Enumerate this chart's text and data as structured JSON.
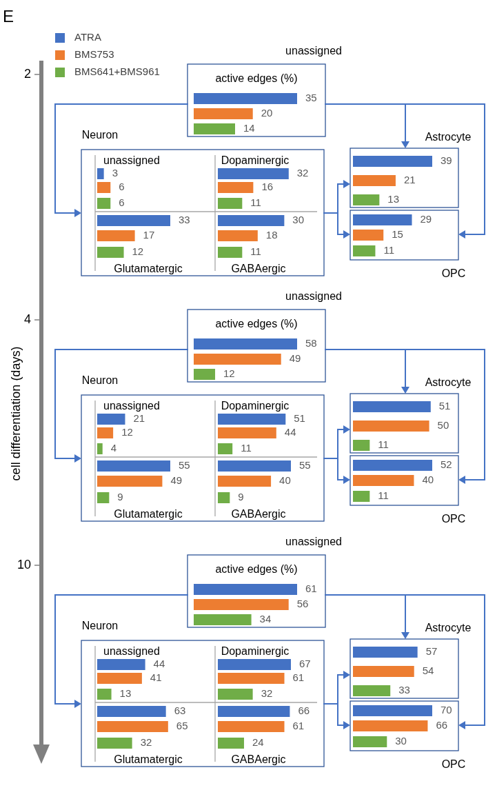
{
  "chart_data": [
    {
      "type": "other",
      "categories": [
        "ATRA",
        "BMS753",
        "BMS641+BMS961"
      ],
      "colors": [
        "#4472c4",
        "#ed7d31",
        "#70ad47"
      ],
      "annotations": [
        "E"
      ]
    },
    {
      "type": "other",
      "ylabel": "cell differentiation (days)",
      "categories": [
        "2",
        "4",
        "10"
      ]
    },
    {
      "type": "bar",
      "orientation": "horizontal",
      "title": "active edges (%)",
      "annotations": [
        "unassigned"
      ],
      "categories": [
        null,
        null,
        null
      ],
      "values": [
        35,
        20,
        14
      ],
      "colors": [
        "#4472c4",
        "#ed7d31",
        "#70ad47"
      ],
      "data_labels": true
    },
    {
      "type": "bar",
      "orientation": "horizontal",
      "title": "unassigned",
      "annotations": [
        "Neuron"
      ],
      "categories": [
        null,
        null,
        null
      ],
      "values": [
        3,
        6,
        6
      ],
      "colors": [
        "#4472c4",
        "#ed7d31",
        "#70ad47"
      ],
      "data_labels": true
    },
    {
      "type": "bar",
      "orientation": "horizontal",
      "title": "Dopaminergic",
      "categories": [
        null,
        null,
        null
      ],
      "values": [
        32,
        16,
        11
      ],
      "colors": [
        "#4472c4",
        "#ed7d31",
        "#70ad47"
      ],
      "data_labels": true
    },
    {
      "type": "bar",
      "orientation": "horizontal",
      "title": "Glutamatergic",
      "categories": [
        null,
        null,
        null
      ],
      "values": [
        33,
        17,
        12
      ],
      "colors": [
        "#4472c4",
        "#ed7d31",
        "#70ad47"
      ],
      "data_labels": true
    },
    {
      "type": "bar",
      "orientation": "horizontal",
      "title": "GABAergic",
      "categories": [
        null,
        null,
        null
      ],
      "values": [
        30,
        18,
        11
      ],
      "colors": [
        "#4472c4",
        "#ed7d31",
        "#70ad47"
      ],
      "data_labels": true
    },
    {
      "type": "bar",
      "orientation": "horizontal",
      "annotations": [
        "Astrocyte"
      ],
      "categories": [
        null,
        null,
        null
      ],
      "values": [
        39,
        21,
        13
      ],
      "colors": [
        "#4472c4",
        "#ed7d31",
        "#70ad47"
      ],
      "data_labels": true
    },
    {
      "type": "bar",
      "orientation": "horizontal",
      "annotations": [
        "OPC"
      ],
      "categories": [
        null,
        null,
        null
      ],
      "values": [
        29,
        15,
        11
      ],
      "colors": [
        "#4472c4",
        "#ed7d31",
        "#70ad47"
      ],
      "data_labels": true
    },
    {
      "type": "bar",
      "orientation": "horizontal",
      "title": "active edges (%)",
      "annotations": [
        "unassigned"
      ],
      "categories": [
        null,
        null,
        null
      ],
      "values": [
        58,
        49,
        12
      ],
      "colors": [
        "#4472c4",
        "#ed7d31",
        "#70ad47"
      ],
      "data_labels": true
    },
    {
      "type": "bar",
      "orientation": "horizontal",
      "title": "unassigned",
      "annotations": [
        "Neuron"
      ],
      "categories": [
        null,
        null,
        null
      ],
      "values": [
        21,
        12,
        4
      ],
      "colors": [
        "#4472c4",
        "#ed7d31",
        "#70ad47"
      ],
      "data_labels": true
    },
    {
      "type": "bar",
      "orientation": "horizontal",
      "title": "Dopaminergic",
      "categories": [
        null,
        null,
        null
      ],
      "values": [
        51,
        44,
        11
      ],
      "colors": [
        "#4472c4",
        "#ed7d31",
        "#70ad47"
      ],
      "data_labels": true
    },
    {
      "type": "bar",
      "orientation": "horizontal",
      "title": "Glutamatergic",
      "categories": [
        null,
        null,
        null
      ],
      "values": [
        55,
        49,
        9
      ],
      "colors": [
        "#4472c4",
        "#ed7d31",
        "#70ad47"
      ],
      "data_labels": true
    },
    {
      "type": "bar",
      "orientation": "horizontal",
      "title": "GABAergic",
      "categories": [
        null,
        null,
        null
      ],
      "values": [
        55,
        40,
        9
      ],
      "colors": [
        "#4472c4",
        "#ed7d31",
        "#70ad47"
      ],
      "data_labels": true
    },
    {
      "type": "bar",
      "orientation": "horizontal",
      "annotations": [
        "Astrocyte"
      ],
      "categories": [
        null,
        null,
        null
      ],
      "values": [
        51,
        50,
        11
      ],
      "colors": [
        "#4472c4",
        "#ed7d31",
        "#70ad47"
      ],
      "data_labels": true
    },
    {
      "type": "bar",
      "orientation": "horizontal",
      "annotations": [
        "OPC"
      ],
      "categories": [
        null,
        null,
        null
      ],
      "values": [
        52,
        40,
        11
      ],
      "colors": [
        "#4472c4",
        "#ed7d31",
        "#70ad47"
      ],
      "data_labels": true
    },
    {
      "type": "bar",
      "orientation": "horizontal",
      "title": "active edges (%)",
      "annotations": [
        "unassigned"
      ],
      "categories": [
        null,
        null,
        null
      ],
      "values": [
        61,
        56,
        34
      ],
      "colors": [
        "#4472c4",
        "#ed7d31",
        "#70ad47"
      ],
      "data_labels": true
    },
    {
      "type": "bar",
      "orientation": "horizontal",
      "title": "unassigned",
      "annotations": [
        "Neuron"
      ],
      "categories": [
        null,
        null,
        null
      ],
      "values": [
        44,
        41,
        13
      ],
      "colors": [
        "#4472c4",
        "#ed7d31",
        "#70ad47"
      ],
      "data_labels": true
    },
    {
      "type": "bar",
      "orientation": "horizontal",
      "title": "Dopaminergic",
      "categories": [
        null,
        null,
        null
      ],
      "values": [
        67,
        61,
        32
      ],
      "colors": [
        "#4472c4",
        "#ed7d31",
        "#70ad47"
      ],
      "data_labels": true
    },
    {
      "type": "bar",
      "orientation": "horizontal",
      "title": "Glutamatergic",
      "categories": [
        null,
        null,
        null
      ],
      "values": [
        63,
        65,
        32
      ],
      "colors": [
        "#4472c4",
        "#ed7d31",
        "#70ad47"
      ],
      "data_labels": true
    },
    {
      "type": "bar",
      "orientation": "horizontal",
      "title": "GABAergic",
      "categories": [
        null,
        null,
        null
      ],
      "values": [
        66,
        61,
        24
      ],
      "colors": [
        "#4472c4",
        "#ed7d31",
        "#70ad47"
      ],
      "data_labels": true
    },
    {
      "type": "bar",
      "orientation": "horizontal",
      "annotations": [
        "Astrocyte"
      ],
      "categories": [
        null,
        null,
        null
      ],
      "values": [
        57,
        54,
        33
      ],
      "colors": [
        "#4472c4",
        "#ed7d31",
        "#70ad47"
      ],
      "data_labels": true
    },
    {
      "type": "bar",
      "orientation": "horizontal",
      "annotations": [
        "OPC"
      ],
      "categories": [
        null,
        null,
        null
      ],
      "values": [
        70,
        66,
        30
      ],
      "colors": [
        "#4472c4",
        "#ed7d31",
        "#70ad47"
      ],
      "data_labels": true
    }
  ]
}
